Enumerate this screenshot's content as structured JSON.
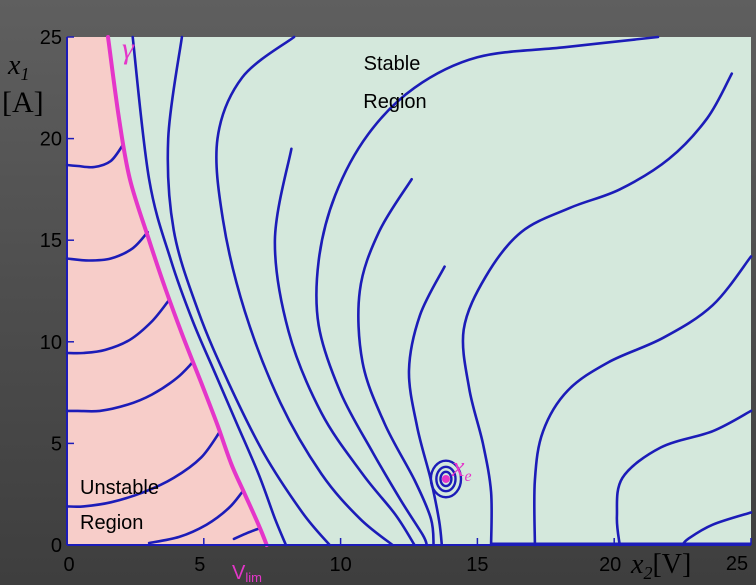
{
  "chart_data": {
    "type": "line",
    "title": "",
    "xlabel": "x2[V]",
    "ylabel": "x1 [A]",
    "xlim": [
      0,
      25
    ],
    "ylim": [
      0,
      25
    ],
    "x_ticks": [
      "0",
      "5",
      "10",
      "15",
      "20",
      "25"
    ],
    "y_ticks": [
      "0",
      "5",
      "10",
      "15",
      "20",
      "25"
    ],
    "ylabel_var": "x",
    "ylabel_sub": "1",
    "ylabel_unit": "[A]",
    "xlabel_var": "x",
    "xlabel_sub": "2",
    "xlabel_unit": "[V]",
    "region_stable": [
      "Stable",
      "Region"
    ],
    "region_unstable": [
      "Unstable",
      "Region"
    ],
    "boundary_label": "γ",
    "vlim_label_main": "V",
    "vlim_label_sub": "lim",
    "equilibrium_label_var": "x",
    "equilibrium_label_sub": "e",
    "equilibrium": [
      13.85,
      3.25
    ],
    "colors": {
      "stable_region": "#d4e8dc",
      "unstable_region": "#f7cdc9",
      "trajectory": "#1c1cb8",
      "boundary": "#e436c9",
      "equilibrium": "#e436c9"
    },
    "boundary_curve": [
      [
        1.5,
        25
      ],
      [
        1.9,
        21
      ],
      [
        2.3,
        18
      ],
      [
        3.0,
        15
      ],
      [
        3.6,
        12.6
      ],
      [
        4.2,
        10.4
      ],
      [
        4.9,
        8
      ],
      [
        5.5,
        5.9
      ],
      [
        6.0,
        4.0
      ],
      [
        6.5,
        2.5
      ],
      [
        7.0,
        1.0
      ],
      [
        7.3,
        0
      ]
    ],
    "stable_trajectories": [
      [
        [
          2.4,
          25
        ],
        [
          3.0,
          18
        ],
        [
          3.8,
          14
        ],
        [
          4.6,
          11
        ],
        [
          5.4,
          8.5
        ],
        [
          6.2,
          6
        ],
        [
          7.0,
          3.5
        ],
        [
          7.6,
          1.3
        ],
        [
          8.0,
          0
        ]
      ],
      [
        [
          4.2,
          25
        ],
        [
          3.7,
          20
        ],
        [
          3.9,
          15.5
        ],
        [
          4.8,
          11.5
        ],
        [
          5.9,
          8
        ],
        [
          7.2,
          4.5
        ],
        [
          8.6,
          1.6
        ],
        [
          9.6,
          0
        ]
      ],
      [
        [
          8.3,
          25
        ],
        [
          6.4,
          23
        ],
        [
          5.5,
          20
        ],
        [
          5.7,
          16
        ],
        [
          6.5,
          11.5
        ],
        [
          7.8,
          7
        ],
        [
          9.3,
          3.5
        ],
        [
          10.7,
          1.3
        ],
        [
          11.9,
          0
        ]
      ],
      [
        [
          8.2,
          19.5
        ],
        [
          7.6,
          15
        ],
        [
          8.1,
          10.5
        ],
        [
          9.3,
          6.5
        ],
        [
          10.8,
          3.5
        ],
        [
          12.0,
          1.5
        ],
        [
          12.7,
          0
        ]
      ],
      [
        [
          21.6,
          25
        ],
        [
          18.2,
          24.5
        ],
        [
          15.0,
          24
        ],
        [
          12.7,
          22.5
        ],
        [
          11.0,
          20.2
        ],
        [
          9.8,
          17.2
        ],
        [
          9.2,
          14
        ],
        [
          9.2,
          10.8
        ],
        [
          10.0,
          7.5
        ],
        [
          11.2,
          4.5
        ],
        [
          12.2,
          2.2
        ],
        [
          13.0,
          0.5
        ],
        [
          13.15,
          0
        ]
      ],
      [
        [
          12.6,
          18
        ],
        [
          11.4,
          15.4
        ],
        [
          10.7,
          12.5
        ],
        [
          10.8,
          9
        ],
        [
          11.6,
          6
        ],
        [
          12.7,
          3.2
        ],
        [
          13.3,
          1.3
        ],
        [
          13.4,
          0
        ]
      ],
      [
        [
          13.8,
          13.7
        ],
        [
          12.9,
          11.3
        ],
        [
          12.5,
          8.6
        ],
        [
          12.8,
          5.8
        ],
        [
          13.3,
          3.2
        ],
        [
          13.6,
          1.2
        ],
        [
          13.7,
          0
        ]
      ],
      [
        [
          24.3,
          23.2
        ],
        [
          23.4,
          21
        ],
        [
          22.0,
          19
        ],
        [
          20.2,
          17.5
        ],
        [
          18.4,
          16.6
        ],
        [
          16.6,
          15.4
        ],
        [
          15.3,
          13.2
        ],
        [
          14.5,
          10.6
        ],
        [
          14.7,
          7.7
        ],
        [
          15.2,
          5
        ],
        [
          15.5,
          2.6
        ],
        [
          15.5,
          0
        ]
      ],
      [
        [
          25,
          14.2
        ],
        [
          23.6,
          11.8
        ],
        [
          21.8,
          10.2
        ],
        [
          19.8,
          9
        ],
        [
          18.3,
          7.6
        ],
        [
          17.4,
          5.6
        ],
        [
          17.1,
          3.2
        ],
        [
          17.1,
          0
        ]
      ],
      [
        [
          25,
          6.6
        ],
        [
          23.6,
          5.6
        ],
        [
          21.7,
          4.8
        ],
        [
          20.3,
          3.3
        ],
        [
          20.1,
          1.4
        ],
        [
          20.2,
          0
        ]
      ],
      [
        [
          25,
          1.6
        ],
        [
          23.6,
          1.0
        ],
        [
          22.7,
          0.3
        ],
        [
          22.5,
          0
        ]
      ]
    ],
    "unstable_trajectories": [
      [
        [
          2.05,
          19.7
        ],
        [
          1.6,
          18.9
        ],
        [
          1.0,
          18.6
        ],
        [
          0.4,
          18.65
        ],
        [
          0,
          18.7
        ]
      ],
      [
        [
          2.95,
          15.4
        ],
        [
          2.4,
          14.6
        ],
        [
          1.6,
          14.1
        ],
        [
          0.8,
          14.0
        ],
        [
          0,
          14.1
        ]
      ],
      [
        [
          3.7,
          12.0
        ],
        [
          3.1,
          11.0
        ],
        [
          2.3,
          10.1
        ],
        [
          1.4,
          9.6
        ],
        [
          0.6,
          9.45
        ],
        [
          0,
          9.45
        ]
      ],
      [
        [
          4.6,
          9.0
        ],
        [
          4.0,
          8.2
        ],
        [
          3.1,
          7.4
        ],
        [
          2.2,
          6.9
        ],
        [
          1.2,
          6.6
        ],
        [
          0.4,
          6.6
        ],
        [
          0,
          6.6
        ]
      ],
      [
        [
          5.6,
          5.6
        ],
        [
          4.9,
          4.3
        ],
        [
          3.9,
          3.3
        ],
        [
          2.8,
          2.6
        ],
        [
          1.6,
          2.1
        ],
        [
          0.6,
          1.9
        ],
        [
          0,
          1.9
        ]
      ],
      [
        [
          6.4,
          2.6
        ],
        [
          5.9,
          1.8
        ],
        [
          5.1,
          1.0
        ],
        [
          4.1,
          0.4
        ],
        [
          3.0,
          0.1
        ]
      ],
      [
        [
          7.0,
          0.8
        ],
        [
          6.6,
          0.6
        ],
        [
          6.1,
          0.3
        ]
      ]
    ],
    "spiral_rings": [
      [
        0.55,
        0.9
      ],
      [
        0.35,
        0.6
      ],
      [
        0.2,
        0.35
      ]
    ]
  }
}
